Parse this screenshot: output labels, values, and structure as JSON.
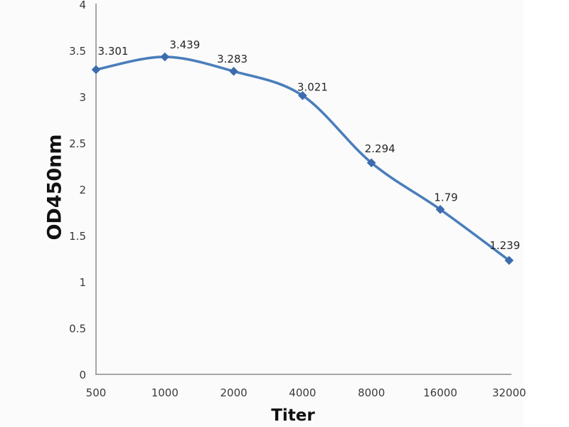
{
  "chart_data": {
    "type": "line",
    "title": "",
    "xlabel": "Titer",
    "ylabel": "OD450nm",
    "categories": [
      "500",
      "1000",
      "2000",
      "4000",
      "8000",
      "16000",
      "32000"
    ],
    "series": [
      {
        "name": "OD450nm",
        "values": [
          3.301,
          3.439,
          3.283,
          3.021,
          2.294,
          1.79,
          1.239
        ]
      }
    ],
    "point_labels": [
      "3.301",
      "3.439",
      "3.283",
      "3.021",
      "2.294",
      "1.79",
      "1.239"
    ],
    "y_ticks": [
      "4",
      "3.5",
      "3",
      "2.5",
      "2",
      "1.5",
      "1",
      "0.5",
      "0"
    ],
    "ylim": [
      0,
      4
    ],
    "x_scale": "log2-categorical",
    "grid": false,
    "legend": "none",
    "line_style": "smooth",
    "marker": "diamond",
    "colors": {
      "line": "#4a7ebb",
      "marker": "#3d6cae",
      "axis": "#9d9d9d",
      "tick_text": "#3a3a3a",
      "label_text": "#262626",
      "plot_bg": "#fbfbfb"
    }
  }
}
